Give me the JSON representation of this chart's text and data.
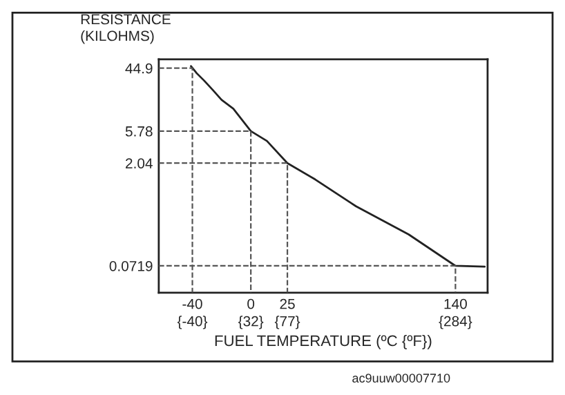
{
  "chart_data": {
    "type": "line",
    "xlabel": "FUEL TEMPERATURE (ºC {ºF})",
    "ylabel": "RESISTANCE\n(KILOHMS)",
    "log": "y",
    "xlim": [
      -63,
      162
    ],
    "ylim": [
      0.03,
      60
    ],
    "xticks": [
      -40,
      0,
      25,
      140
    ],
    "x2lim": [
      -81.4,
      323.6
    ],
    "x2ticks": [
      {
        "value": -40,
        "label": "{-40}"
      },
      {
        "value": 32,
        "label": "{32}"
      },
      {
        "value": 77,
        "label": "{77}"
      },
      {
        "value": 284,
        "label": "{284}"
      }
    ],
    "yticks": [
      0.0719,
      2.04,
      5.78,
      44.9
    ],
    "series": [
      {
        "color": "#222222",
        "x": [
          -41,
          -37,
          -32,
          -26,
          -20,
          -12,
          0,
          11,
          25,
          44,
          72,
          108,
          140,
          160
        ],
        "values": [
          48,
          38,
          30,
          22,
          16,
          12,
          5.78,
          4.2,
          2.04,
          1.2,
          0.5,
          0.2,
          0.0719,
          0.07
        ]
      },
      {
        "color": "#555555",
        "line_style": "dashed",
        "x": [
          -63,
          -40,
          -40
        ],
        "values": [
          44.9,
          44.9,
          0.03
        ]
      },
      {
        "color": "#555555",
        "line_style": "dashed",
        "x": [
          -63,
          0,
          0
        ],
        "values": [
          5.78,
          5.78,
          0.03
        ]
      },
      {
        "color": "#555555",
        "line_style": "dashed",
        "x": [
          -63,
          25,
          25
        ],
        "values": [
          2.04,
          2.04,
          0.03
        ]
      },
      {
        "color": "#555555",
        "line_style": "dashed",
        "x": [
          -63,
          140,
          140
        ],
        "values": [
          0.0719,
          0.0719,
          0.03
        ]
      }
    ],
    "grid": false,
    "legend": false,
    "marker": "none",
    "annotations": [
      "ac9uuw00007710"
    ]
  }
}
